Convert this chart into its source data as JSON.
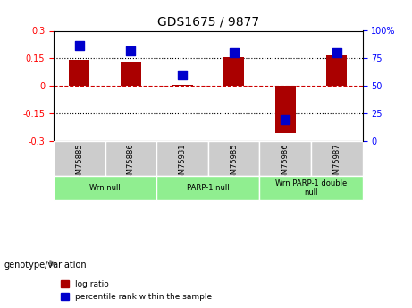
{
  "title": "GDS1675 / 9877",
  "samples": [
    "GSM75885",
    "GSM75886",
    "GSM75931",
    "GSM75985",
    "GSM75986",
    "GSM75987"
  ],
  "log_ratio": [
    0.145,
    0.135,
    0.005,
    0.155,
    -0.255,
    0.165
  ],
  "percentile_rank": [
    87,
    82,
    60,
    80,
    20,
    80
  ],
  "groups": [
    {
      "label": "Wrn null",
      "samples": [
        0,
        1
      ],
      "color": "#90EE90"
    },
    {
      "label": "PARP-1 null",
      "samples": [
        2,
        3
      ],
      "color": "#90EE90"
    },
    {
      "label": "Wrn PARP-1 double\nnull",
      "samples": [
        4,
        5
      ],
      "color": "#90EE90"
    }
  ],
  "ylim_left": [
    -0.3,
    0.3
  ],
  "ylim_right": [
    0,
    100
  ],
  "yticks_left": [
    -0.3,
    -0.15,
    0,
    0.15,
    0.3
  ],
  "yticks_right": [
    0,
    25,
    50,
    75,
    100
  ],
  "yticklabels_right": [
    "0",
    "25",
    "50",
    "75",
    "100%"
  ],
  "bar_color": "#AA0000",
  "dot_color": "#0000CC",
  "hline_0_color": "#CC0000",
  "hline_015_color": "#000000",
  "bar_width": 0.4,
  "dot_size": 50,
  "sample_box_color": "#CCCCCC",
  "legend_red_label": "log ratio",
  "legend_blue_label": "percentile rank within the sample",
  "genotype_label": "genotype/variation",
  "arrow_color": "#808080"
}
